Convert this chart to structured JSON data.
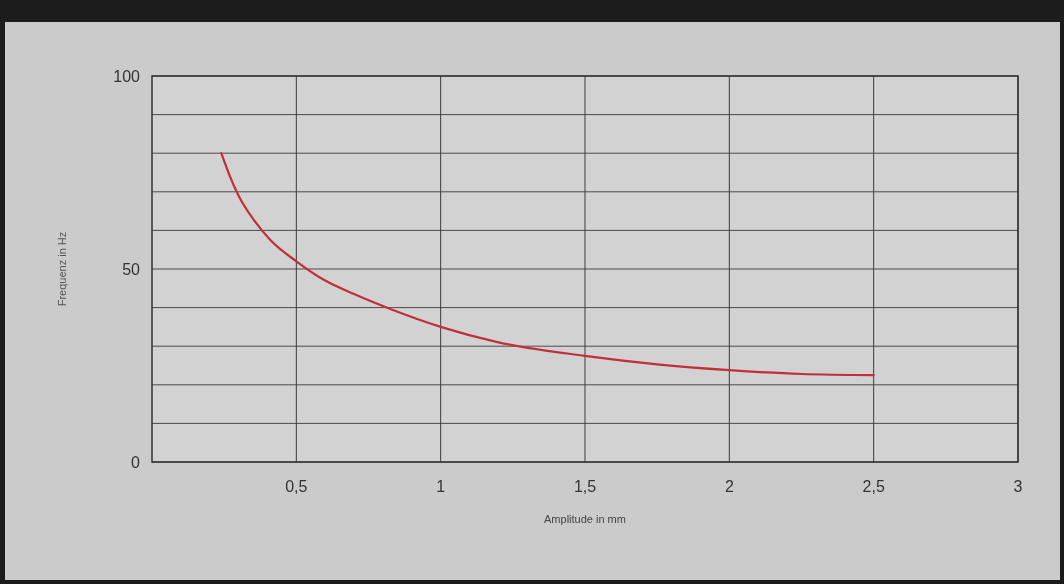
{
  "chart_data": {
    "type": "line",
    "xlabel": "Amplitude in mm",
    "ylabel": "Frequenz in Hz",
    "xlim": [
      0,
      3
    ],
    "xticks": [
      {
        "value": 0.5,
        "label": "0,5"
      },
      1,
      {
        "value": 1.5,
        "label": "1,5"
      },
      2,
      {
        "value": 2.5,
        "label": "2,5"
      },
      3
    ],
    "ylim": [
      0,
      100
    ],
    "yticks": [
      0,
      {
        "value": 10,
        "label": null
      },
      {
        "value": 20,
        "label": null
      },
      {
        "value": 30,
        "label": null
      },
      {
        "value": 40,
        "label": null
      },
      50,
      {
        "value": 60,
        "label": null
      },
      {
        "value": 70,
        "label": null
      },
      {
        "value": 80,
        "label": null
      },
      {
        "value": 90,
        "label": null
      },
      100
    ],
    "grid": true,
    "series": [
      {
        "color": "#c0303a",
        "x": [
          0.24,
          0.27,
          0.3,
          0.35,
          0.41,
          0.5,
          0.6,
          0.7,
          0.83,
          1.0,
          1.2,
          1.5,
          1.75,
          2.0,
          2.25,
          2.5
        ],
        "values": [
          80,
          74,
          69,
          63,
          57.5,
          52,
          47,
          43.5,
          39.5,
          35,
          31,
          27.5,
          25.3,
          23.8,
          22.8,
          22.5
        ]
      }
    ]
  }
}
